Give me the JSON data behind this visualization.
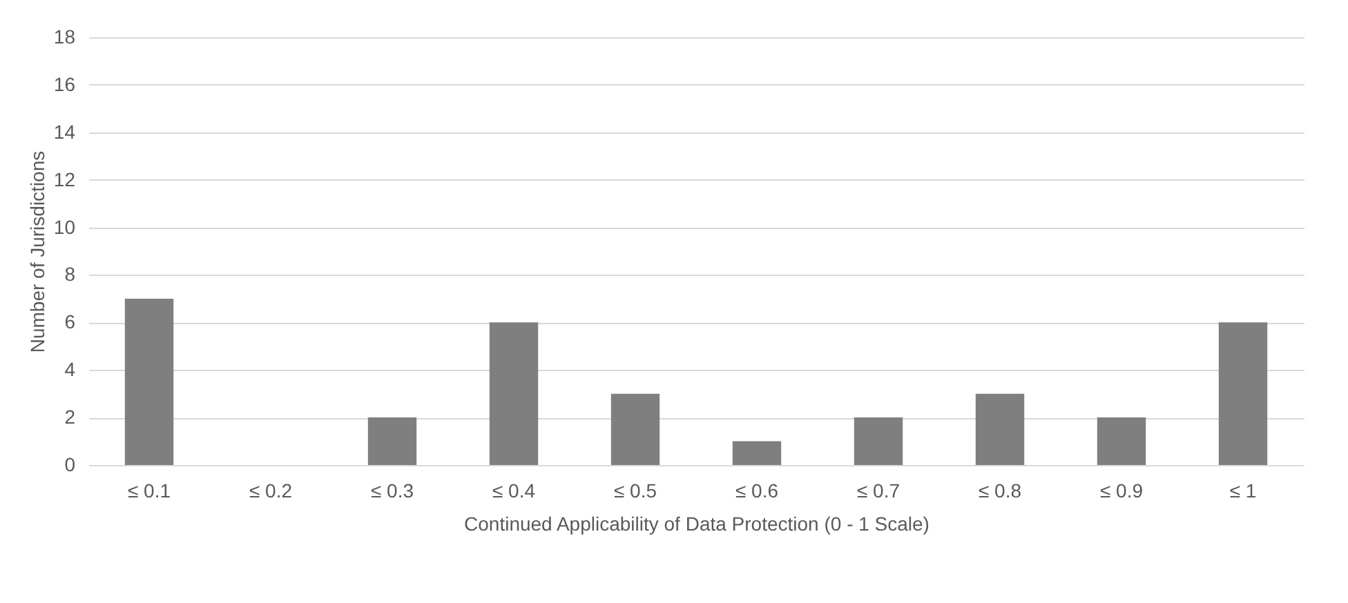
{
  "chart_data": {
    "type": "bar",
    "categories": [
      "≤ 0.1",
      "≤ 0.2",
      "≤ 0.3",
      "≤ 0.4",
      "≤ 0.5",
      "≤ 0.6",
      "≤ 0.7",
      "≤ 0.8",
      "≤ 0.9",
      "≤ 1"
    ],
    "values": [
      7,
      0,
      2,
      6,
      3,
      1,
      2,
      3,
      2,
      6
    ],
    "color": "#7f7f7f",
    "xlabel": "Continued Applicability of Data Protection (0 - 1 Scale)",
    "ylabel": "Number of Jurisdictions",
    "ylim": [
      0,
      18
    ],
    "yticks": [
      0,
      2,
      4,
      6,
      8,
      10,
      12,
      14,
      16,
      18
    ],
    "grid": "y"
  }
}
